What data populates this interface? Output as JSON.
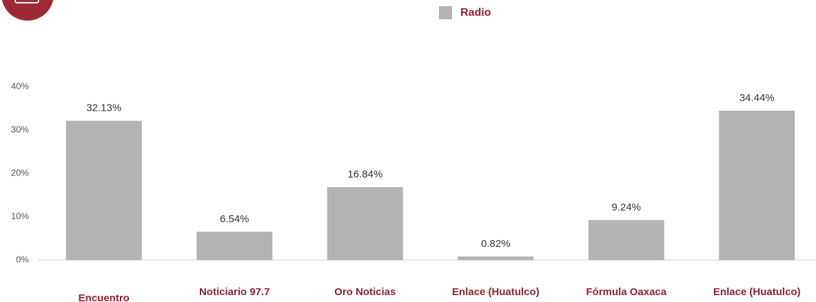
{
  "chart_data": {
    "type": "bar",
    "categories": [
      "Encuentro",
      "Noticiario 97.7",
      "Oro Noticias",
      "Enlace (Huatulco)",
      "Fórmula Oaxaca",
      "Enlace (Huatulco)"
    ],
    "series": [
      {
        "name": "Radio",
        "color": "#b3b3b3",
        "values": [
          32.13,
          6.54,
          16.84,
          0.82,
          9.24,
          34.44
        ],
        "value_labels": [
          "32.13%",
          "6.54%",
          "16.84%",
          "0.82%",
          "9.24%",
          "34.44%"
        ]
      }
    ],
    "ylim": [
      0,
      40
    ],
    "yticks": [
      {
        "value": 0,
        "label": "0%"
      },
      {
        "value": 10,
        "label": "10%"
      },
      {
        "value": 20,
        "label": "20%"
      },
      {
        "value": 30,
        "label": "30%"
      },
      {
        "value": 40,
        "label": "40%"
      }
    ],
    "grid": false,
    "legend": "top"
  }
}
